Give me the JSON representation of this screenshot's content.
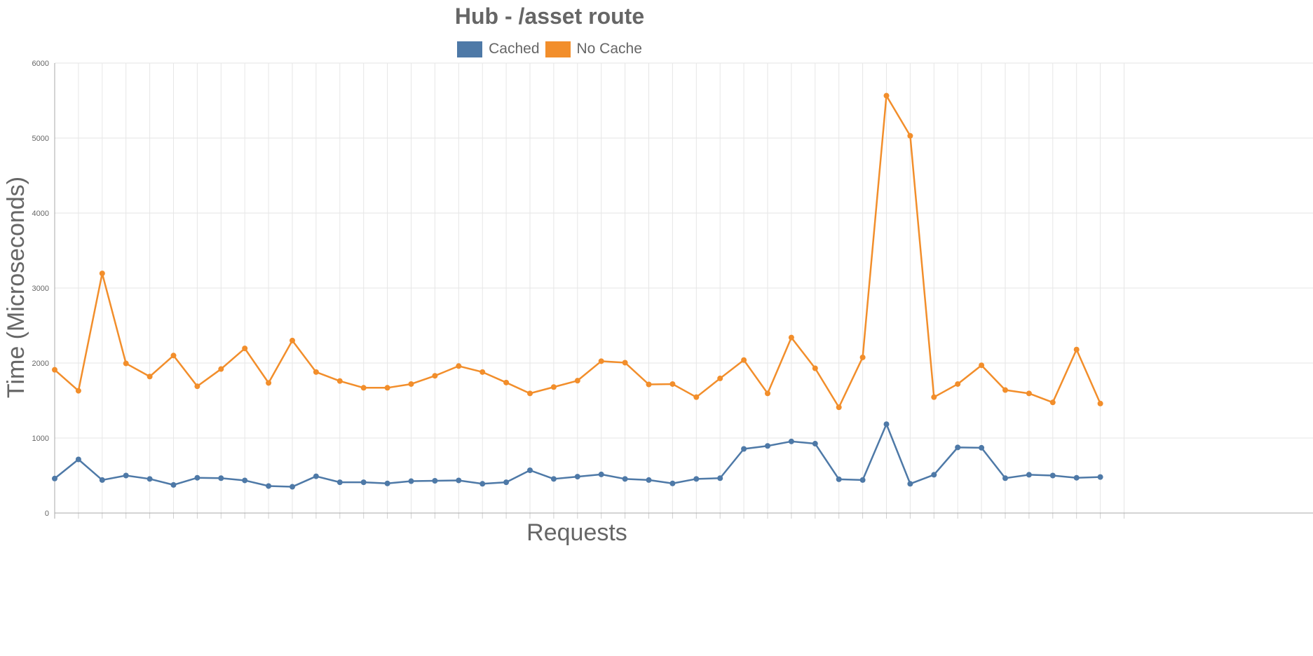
{
  "chart_data": {
    "type": "line",
    "title": "Hub - /asset route",
    "xlabel": "Requests",
    "ylabel": "Time (Microseconds)",
    "ylim": [
      0,
      6000
    ],
    "yticks": [
      0,
      1000,
      2000,
      3000,
      4000,
      5000,
      6000
    ],
    "grid": true,
    "legend_position": "top-center",
    "series": [
      {
        "name": "Cached",
        "color": "#4e79a7",
        "values": [
          460,
          715,
          440,
          500,
          455,
          375,
          470,
          465,
          435,
          360,
          350,
          490,
          410,
          410,
          395,
          425,
          430,
          435,
          390,
          410,
          570,
          455,
          485,
          515,
          455,
          440,
          395,
          455,
          465,
          855,
          895,
          955,
          925,
          450,
          440,
          1185,
          390,
          510,
          875,
          870,
          465,
          510,
          500,
          470,
          480
        ]
      },
      {
        "name": "No Cache",
        "color": "#f28e2b",
        "values": [
          1910,
          1630,
          3195,
          1995,
          1820,
          2100,
          1690,
          1920,
          2195,
          1735,
          2300,
          1880,
          1760,
          1670,
          1670,
          1720,
          1830,
          1960,
          1880,
          1740,
          1595,
          1680,
          1765,
          2025,
          2005,
          1715,
          1720,
          1545,
          1795,
          2040,
          1595,
          2340,
          1930,
          1410,
          2075,
          5565,
          5030,
          1545,
          1720,
          1970,
          1640,
          1595,
          1475,
          2180,
          1460
        ]
      }
    ]
  }
}
